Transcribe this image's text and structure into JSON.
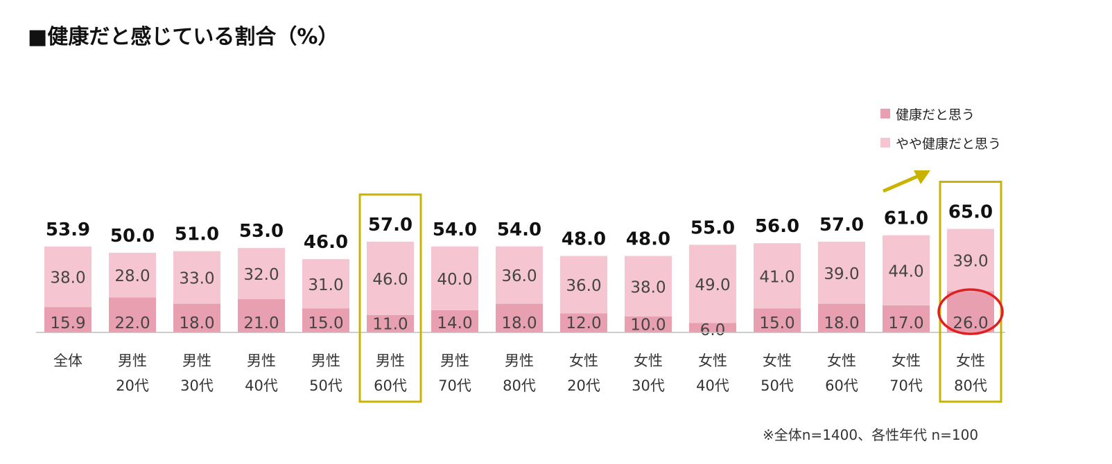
{
  "title": "■健康だと感じている割合（%）",
  "note": "※全体n=1400、各性年代 n=100",
  "colors": {
    "healthy": "#e8a0b0",
    "somewhat": "#f5c6d1",
    "highlight_box": "#c8b400",
    "circle": "#e02020",
    "arrow": "#c8b400"
  },
  "legend": [
    {
      "label": "健康だと思う",
      "color": "#e8a0b0"
    },
    {
      "label": "やや健康だと思う",
      "color": "#f5c6d1"
    }
  ],
  "chart_data": {
    "type": "bar",
    "stacked": true,
    "categories": [
      [
        "全体"
      ],
      [
        "男性",
        "20代"
      ],
      [
        "男性",
        "30代"
      ],
      [
        "男性",
        "40代"
      ],
      [
        "男性",
        "50代"
      ],
      [
        "男性",
        "60代"
      ],
      [
        "男性",
        "70代"
      ],
      [
        "男性",
        "80代"
      ],
      [
        "女性",
        "20代"
      ],
      [
        "女性",
        "30代"
      ],
      [
        "女性",
        "40代"
      ],
      [
        "女性",
        "50代"
      ],
      [
        "女性",
        "60代"
      ],
      [
        "女性",
        "70代"
      ],
      [
        "女性",
        "80代"
      ]
    ],
    "series": [
      {
        "name": "健康だと思う",
        "values": [
          15.9,
          22.0,
          18.0,
          21.0,
          15.0,
          11.0,
          14.0,
          18.0,
          12.0,
          10.0,
          6.0,
          15.0,
          18.0,
          17.0,
          26.0
        ],
        "labels": [
          "15.9",
          "22.0",
          "18.0",
          "21.0",
          "15.0",
          "11.0",
          "14.0",
          "18.0",
          "12.0",
          "10.0",
          "6.0",
          "15.0",
          "18.0",
          "17.0",
          "26.0"
        ]
      },
      {
        "name": "やや健康だと思う",
        "values": [
          38.0,
          28.0,
          33.0,
          32.0,
          31.0,
          46.0,
          40.0,
          36.0,
          36.0,
          38.0,
          49.0,
          41.0,
          39.0,
          44.0,
          39.0
        ],
        "labels": [
          "38.0",
          "28.0",
          "33.0",
          "32.0",
          "31.0",
          "46.0",
          "40.0",
          "36.0",
          "36.0",
          "38.0",
          "49.0",
          "41.0",
          "39.0",
          "44.0",
          "39.0"
        ]
      }
    ],
    "totals": [
      53.9,
      50.0,
      51.0,
      53.0,
      46.0,
      57.0,
      54.0,
      54.0,
      48.0,
      48.0,
      55.0,
      56.0,
      57.0,
      61.0,
      65.0
    ],
    "total_labels": [
      "53.9",
      "50.0",
      "51.0",
      "53.0",
      "46.0",
      "57.0",
      "54.0",
      "54.0",
      "48.0",
      "48.0",
      "55.0",
      "56.0",
      "57.0",
      "61.0",
      "65.0"
    ],
    "highlighted_categories": [
      5,
      14
    ],
    "circled_value": {
      "category": 14,
      "series": 0
    },
    "legend_position": "top-right",
    "grid": false
  }
}
